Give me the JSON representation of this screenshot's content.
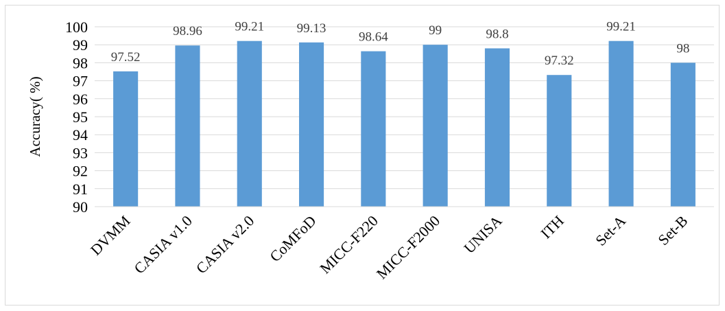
{
  "chart_data": {
    "type": "bar",
    "title": "",
    "xlabel": "",
    "ylabel": "Accuracy( %)",
    "ylim": [
      90,
      100
    ],
    "yticks": [
      "90",
      "91",
      "92",
      "93",
      "94",
      "95",
      "96",
      "97",
      "98",
      "99",
      "100"
    ],
    "grid": true,
    "bar_color": "#5b9bd5",
    "categories": [
      "DVMM",
      "CASIA v1.0",
      "CASIA v2.0",
      "CoMFoD",
      "MICC-F220",
      "MICC-F2000",
      "UNISA",
      "ITH",
      "Set-A",
      "Set-B"
    ],
    "values": [
      97.52,
      98.96,
      99.21,
      99.13,
      98.64,
      99,
      98.8,
      97.32,
      99.21,
      98
    ],
    "data_labels": [
      "97.52",
      "98.96",
      "99.21",
      "99.13",
      "98.64",
      "99",
      "98.8",
      "97.32",
      "99.21",
      "98"
    ]
  }
}
